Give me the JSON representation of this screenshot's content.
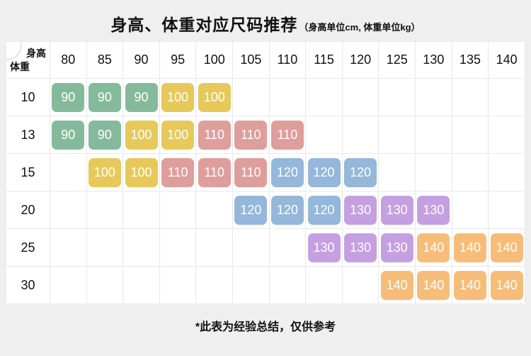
{
  "title": "身高、体重对应尺码推荐",
  "subtitle": "（身高单位cm, 体重单位kg）",
  "footer": "*此表为经验总结，仅供参考",
  "corner": {
    "height_label": "身高",
    "weight_label": "体重"
  },
  "chart_data": {
    "type": "table",
    "title": "身高、体重对应尺码推荐",
    "units_note": "身高单位cm, 体重单位kg",
    "columns": [
      "80",
      "85",
      "90",
      "95",
      "100",
      "105",
      "110",
      "115",
      "120",
      "125",
      "130",
      "135",
      "140"
    ],
    "rows": [
      {
        "weight": "10",
        "cells": [
          "90",
          "90",
          "90",
          "100",
          "100",
          "",
          "",
          "",
          "",
          "",
          "",
          "",
          ""
        ]
      },
      {
        "weight": "13",
        "cells": [
          "90",
          "90",
          "100",
          "100",
          "110",
          "110",
          "110",
          "",
          "",
          "",
          "",
          "",
          ""
        ]
      },
      {
        "weight": "15",
        "cells": [
          "",
          "100",
          "100",
          "110",
          "110",
          "110",
          "120",
          "120",
          "120",
          "",
          "",
          "",
          ""
        ]
      },
      {
        "weight": "20",
        "cells": [
          "",
          "",
          "",
          "",
          "",
          "120",
          "120",
          "120",
          "130",
          "130",
          "130",
          "",
          ""
        ]
      },
      {
        "weight": "25",
        "cells": [
          "",
          "",
          "",
          "",
          "",
          "",
          "",
          "130",
          "130",
          "130",
          "140",
          "140",
          "140"
        ]
      },
      {
        "weight": "30",
        "cells": [
          "",
          "",
          "",
          "",
          "",
          "",
          "",
          "",
          "",
          "140",
          "140",
          "140",
          "140"
        ]
      }
    ],
    "size_colors": {
      "90": "#84ba9b",
      "100": "#e6c95a",
      "110": "#de9e9c",
      "120": "#94b7da",
      "130": "#c5a0e0",
      "140": "#f6bd79"
    }
  }
}
